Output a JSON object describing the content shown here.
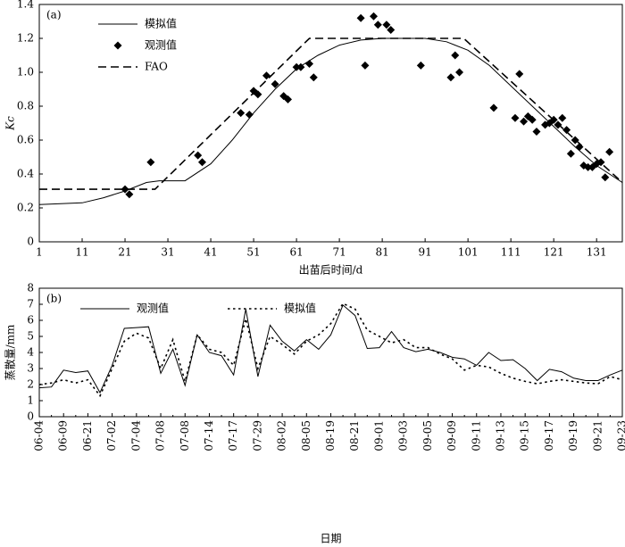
{
  "chart_data": [
    {
      "type": "line",
      "annotation": "(a)",
      "xlabel": "出苗后时间/d",
      "ylabel": "Kc",
      "xlim": [
        1,
        137
      ],
      "xticks": [
        1,
        11,
        21,
        31,
        41,
        51,
        61,
        71,
        81,
        91,
        101,
        111,
        121,
        131
      ],
      "ylim": [
        0,
        1.4
      ],
      "yticks": [
        0,
        0.2,
        0.4,
        0.6,
        0.8,
        {
          "value": 1,
          "label": "1.0"
        },
        1.2,
        1.4
      ],
      "legend": "upper left",
      "series": [
        {
          "name": "模拟值",
          "color": "#000000",
          "style": "solid",
          "x": [
            1,
            11,
            16,
            21,
            26,
            29,
            35,
            41,
            46,
            51,
            56,
            61,
            66,
            71,
            76,
            81,
            91,
            96,
            101,
            106,
            111,
            116,
            121,
            126,
            131,
            137
          ],
          "values": [
            0.22,
            0.23,
            0.26,
            0.3,
            0.35,
            0.36,
            0.36,
            0.46,
            0.6,
            0.76,
            0.9,
            1.02,
            1.1,
            1.16,
            1.19,
            1.2,
            1.2,
            1.18,
            1.13,
            1.04,
            0.92,
            0.8,
            0.68,
            0.56,
            0.45,
            0.35
          ]
        },
        {
          "name": "观测值",
          "color": "#000000",
          "style": "diamond",
          "x": [
            21,
            22,
            27,
            38,
            39,
            48,
            50,
            51,
            52,
            54,
            56,
            58,
            59,
            61,
            62,
            64,
            65,
            76,
            77,
            79,
            80,
            82,
            83,
            90,
            97,
            98,
            99,
            107,
            112,
            113,
            114,
            115,
            116,
            117,
            119,
            120,
            121,
            122,
            123,
            124,
            125,
            126,
            127,
            128,
            129,
            130,
            131,
            132,
            133,
            134
          ],
          "values": [
            0.31,
            0.28,
            0.47,
            0.51,
            0.47,
            0.76,
            0.75,
            0.89,
            0.87,
            0.98,
            0.93,
            0.86,
            0.84,
            1.03,
            1.03,
            1.05,
            0.97,
            1.32,
            1.04,
            1.33,
            1.28,
            1.28,
            1.25,
            1.04,
            0.97,
            1.1,
            1.0,
            0.79,
            0.73,
            0.99,
            0.71,
            0.74,
            0.72,
            0.65,
            0.69,
            0.7,
            0.72,
            0.69,
            0.73,
            0.66,
            0.52,
            0.6,
            0.56,
            0.45,
            0.44,
            0.44,
            0.46,
            0.47,
            0.38,
            0.53
          ]
        },
        {
          "name": "FAO",
          "color": "#000000",
          "style": "dashed",
          "x": [
            1,
            28,
            64,
            100,
            137
          ],
          "values": [
            0.31,
            0.31,
            1.2,
            1.2,
            0.35
          ]
        }
      ]
    },
    {
      "type": "line",
      "annotation": "(b)",
      "xlabel": "日期",
      "ylabel": "蒸散量/mm",
      "categories": [
        "06-04",
        null,
        "06-09",
        null,
        "06-21",
        null,
        "07-02",
        null,
        "07-04",
        null,
        "07-08",
        null,
        "07-08",
        null,
        "07-14",
        null,
        "07-17",
        null,
        "07-29",
        null,
        "08-02",
        null,
        "08-05",
        null,
        "08-19",
        null,
        "08-21",
        null,
        "09-01",
        null,
        "09-03",
        null,
        "09-05",
        null,
        "09-09",
        null,
        "09-11",
        null,
        "09-13",
        null,
        "09-15",
        null,
        "09-17",
        null,
        "09-19",
        null,
        "09-21",
        null,
        "09-23"
      ],
      "ylim": [
        0,
        8
      ],
      "yticks": [
        0,
        1,
        2,
        3,
        4,
        5,
        6,
        7,
        8
      ],
      "legend": "upper left",
      "series": [
        {
          "name": "观测值",
          "color": "#000000",
          "style": "solid",
          "values": [
            1.8,
            1.85,
            2.9,
            2.75,
            2.85,
            1.5,
            3.2,
            5.5,
            5.55,
            5.6,
            2.7,
            4.2,
            1.95,
            5.1,
            4.0,
            3.8,
            2.6,
            6.7,
            2.5,
            5.7,
            4.7,
            4.1,
            4.8,
            4.2,
            5.1,
            6.95,
            6.3,
            4.25,
            4.3,
            5.3,
            4.3,
            4.05,
            4.2,
            4.0,
            3.7,
            3.6,
            3.2,
            4.0,
            3.5,
            3.55,
            3.0,
            2.25,
            2.95,
            2.8,
            2.4,
            2.25,
            2.25,
            2.6,
            2.9
          ]
        },
        {
          "name": "模拟值",
          "color": "#000000",
          "style": "dotted",
          "values": [
            2.0,
            2.1,
            2.3,
            2.1,
            2.3,
            1.3,
            3.0,
            4.7,
            5.2,
            4.9,
            3.0,
            4.8,
            2.2,
            5.1,
            4.2,
            4.0,
            3.2,
            6.1,
            3.0,
            5.0,
            4.5,
            3.9,
            4.7,
            5.1,
            5.8,
            7.05,
            6.7,
            5.4,
            5.0,
            4.6,
            4.8,
            4.3,
            4.3,
            3.9,
            3.6,
            2.9,
            3.2,
            3.1,
            2.7,
            2.4,
            2.2,
            2.05,
            2.2,
            2.3,
            2.2,
            2.1,
            2.05,
            2.5,
            2.3
          ]
        }
      ]
    }
  ]
}
